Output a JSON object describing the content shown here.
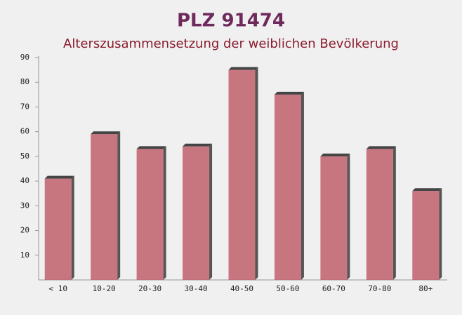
{
  "chart_data": {
    "type": "bar",
    "title": "PLZ 91474",
    "subtitle": "Alterszusammensetzung der weiblichen Bevölkerung",
    "categories": [
      "< 10",
      "10-20",
      "20-30",
      "30-40",
      "40-50",
      "50-60",
      "60-70",
      "70-80",
      "80+"
    ],
    "values": [
      41,
      59,
      53,
      54,
      85,
      75,
      50,
      53,
      36
    ],
    "color": "#c0606c",
    "ylim": [
      0,
      90
    ],
    "yticks": [
      10,
      20,
      30,
      40,
      50,
      60,
      70,
      80,
      90
    ],
    "grid": false
  }
}
